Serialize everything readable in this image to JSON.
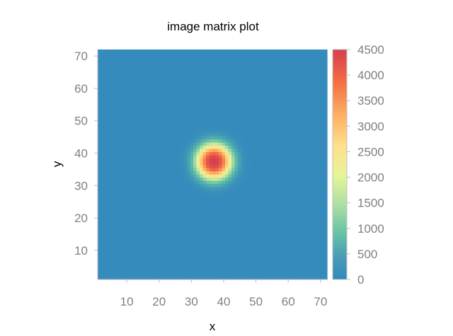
{
  "chart_data": {
    "type": "heatmap",
    "title": "image matrix plot",
    "xlabel": "x",
    "ylabel": "y",
    "xlim": [
      1,
      72
    ],
    "ylim": [
      1,
      72
    ],
    "x_ticks": [
      10,
      20,
      30,
      40,
      50,
      60,
      70
    ],
    "y_ticks": [
      10,
      20,
      30,
      40,
      50,
      60,
      70
    ],
    "grid_size": [
      72,
      72
    ],
    "peak": {
      "x": 37,
      "y": 37.5,
      "value": 4500
    },
    "background_value": 50,
    "colorbar": {
      "min": 0,
      "max": 4500,
      "ticks": [
        0,
        500,
        1000,
        1500,
        2000,
        2500,
        3000,
        3500,
        4000,
        4500
      ],
      "colors": [
        "#3288bd",
        "#66c2a5",
        "#abdda4",
        "#e6f598",
        "#fee08b",
        "#fdae61",
        "#f46d43",
        "#d53e4f"
      ]
    }
  }
}
